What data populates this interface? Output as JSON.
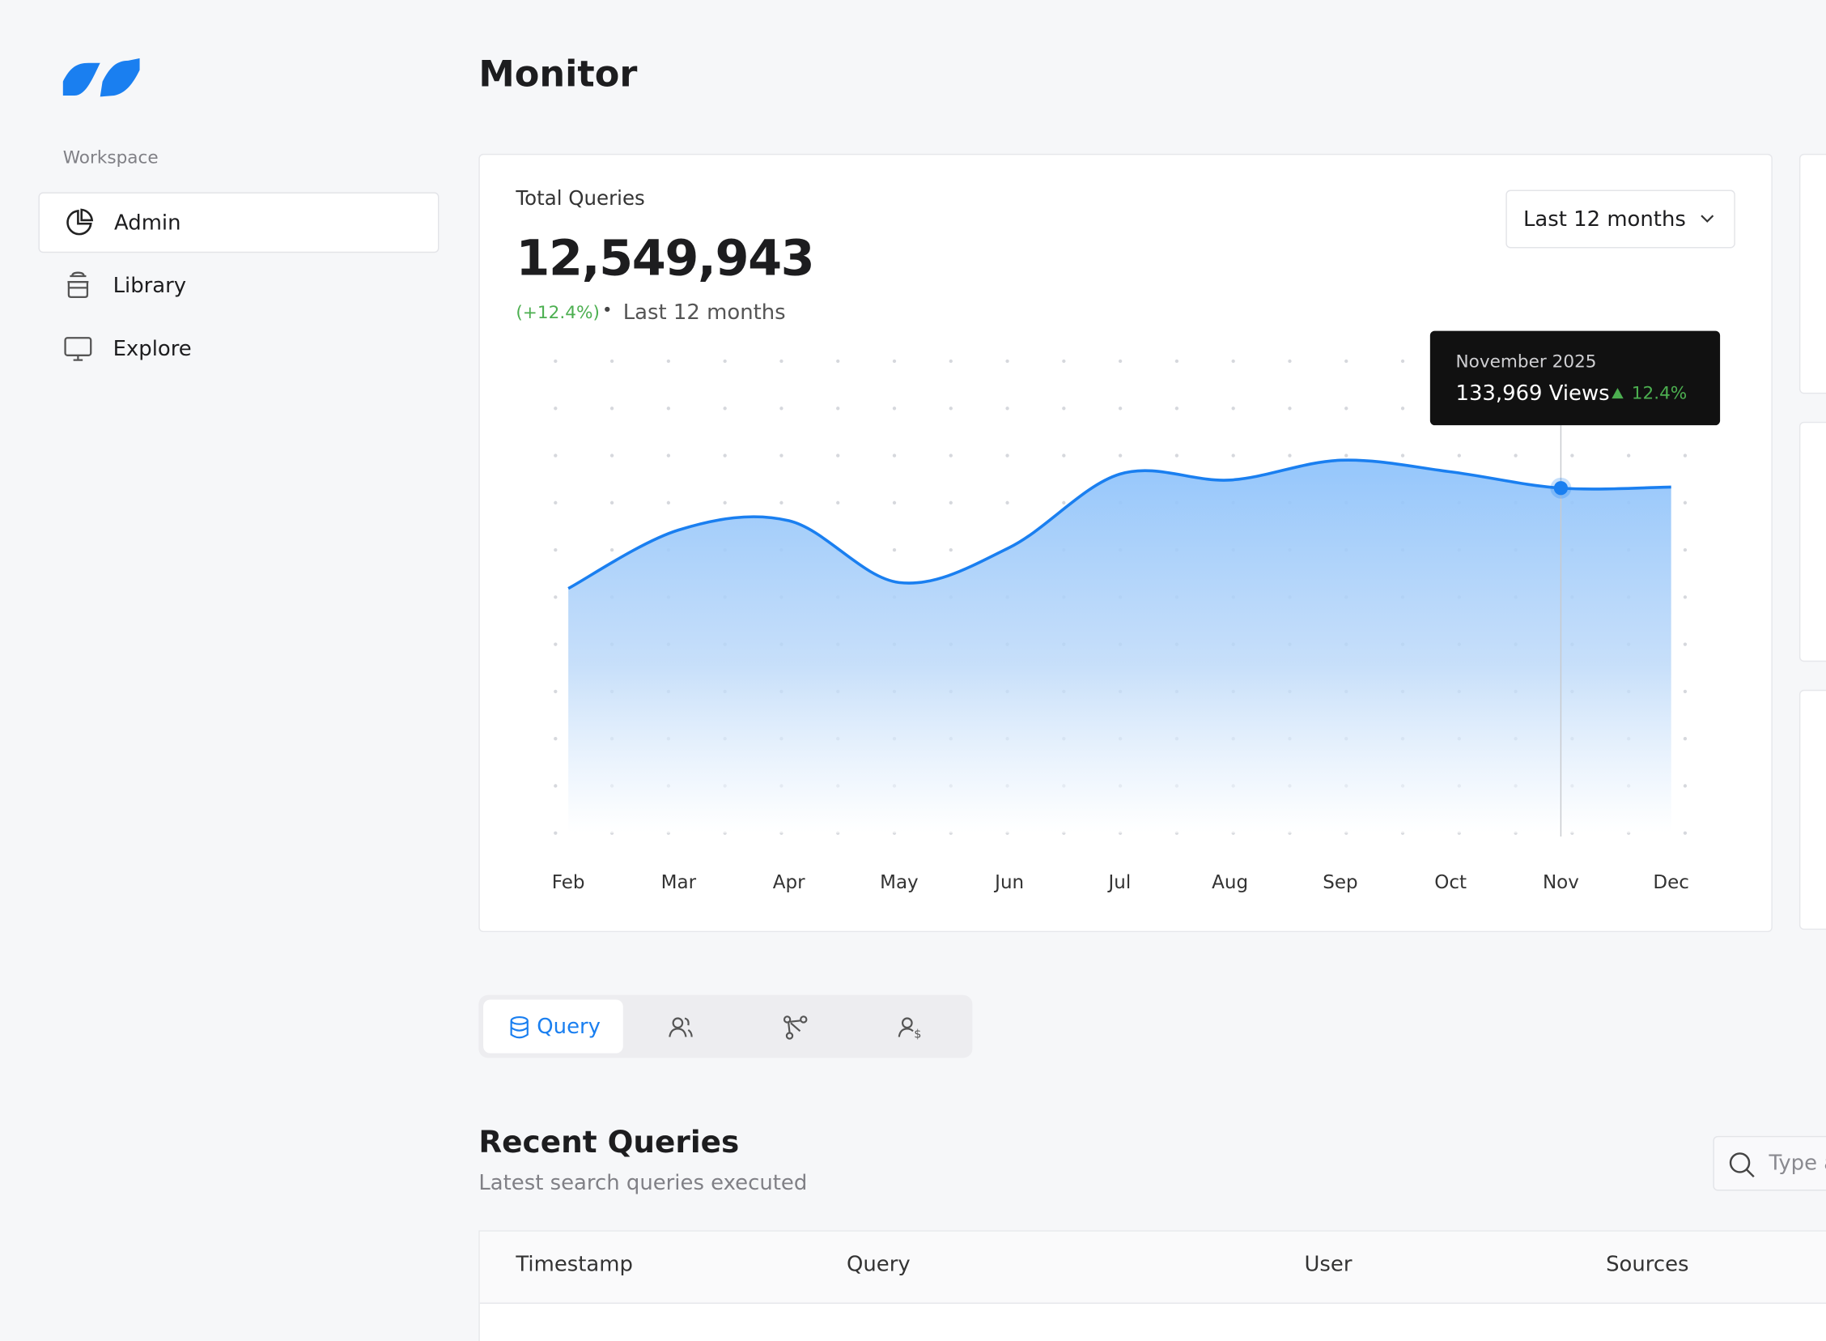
{
  "sidebar": {
    "section": "Workspace",
    "items": [
      "Admin",
      "Library",
      "Explore"
    ]
  },
  "header": {
    "title": "Monitor"
  },
  "card": {
    "label": "Total Queries",
    "total": "12,549,943",
    "change": "(+12.4%)",
    "period": "Last 12 months",
    "dropdown": "Last 12 months"
  },
  "chart_data": {
    "type": "area",
    "categories": [
      "Feb",
      "Mar",
      "Apr",
      "May",
      "Jun",
      "Jul",
      "Aug",
      "Sep",
      "Oct",
      "Nov",
      "Dec"
    ],
    "values": [
      95000,
      117700,
      121300,
      97300,
      110900,
      139400,
      137100,
      144800,
      140300,
      133969,
      134400
    ],
    "color": "#1a7ff0",
    "tooltip": {
      "title": "November 2025",
      "value_label": "133,969 Views",
      "change": "12.4%"
    }
  },
  "tabs": [
    "Query"
  ],
  "recent": {
    "title": "Recent Queries",
    "subtitle": "Latest search queries executed",
    "search_placeholder": "Type a"
  },
  "table": {
    "columns": [
      "Timestamp",
      "Query",
      "User",
      "Sources"
    ]
  }
}
